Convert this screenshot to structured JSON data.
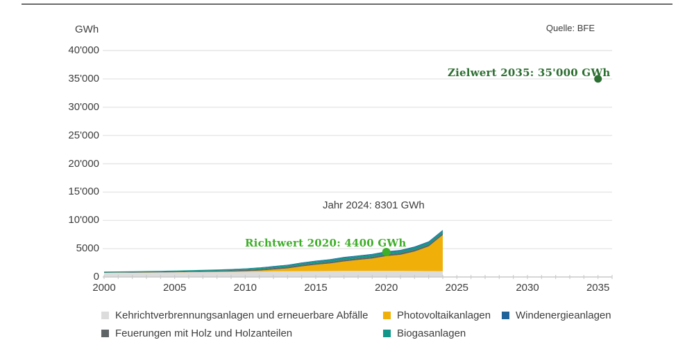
{
  "header": {
    "unit_label": "GWh",
    "source_label": "Quelle: BFE"
  },
  "annotations": {
    "jahr": {
      "text": "Jahr 2024: 8301 GWh"
    },
    "richtwert": {
      "text": "Richtwert 2020: 4400 GWh",
      "year": 2020,
      "value": 4400,
      "color": "#3fae2a"
    },
    "zielwert": {
      "text": "Zielwert 2035: 35'000 GWh",
      "year": 2035,
      "value": 35000,
      "color": "#2d6e32"
    }
  },
  "chart_data": {
    "type": "area",
    "stacked": true,
    "title": "",
    "ylabel": "GWh",
    "xlabel": "",
    "xlim": [
      2000,
      2036
    ],
    "ylim": [
      0,
      40000
    ],
    "grid": true,
    "x": [
      2000,
      2001,
      2002,
      2003,
      2004,
      2005,
      2006,
      2007,
      2008,
      2009,
      2010,
      2011,
      2012,
      2013,
      2014,
      2015,
      2016,
      2017,
      2018,
      2019,
      2020,
      2021,
      2022,
      2023,
      2024
    ],
    "series": [
      {
        "name": "Kehrichtverbrennungsanlagen und erneuerbare Abfälle",
        "color": "#dcdcdc",
        "values": [
          720,
          740,
          760,
          775,
          790,
          810,
          840,
          870,
          890,
          910,
          935,
          955,
          1000,
          1020,
          1030,
          1040,
          1050,
          1060,
          1060,
          1070,
          1080,
          1070,
          1050,
          1040,
          1031
        ]
      },
      {
        "name": "Photovoltaikanlagen",
        "color": "#f0b009",
        "values": [
          11,
          14,
          16,
          18,
          20,
          21,
          24,
          29,
          37,
          54,
          94,
          168,
          323,
          500,
          842,
          1119,
          1333,
          1683,
          1945,
          2178,
          2599,
          2842,
          3440,
          4350,
          6380
        ]
      },
      {
        "name": "Feuerungen mit Holz und Holzanteilen",
        "color": "#5f6466",
        "values": [
          60,
          70,
          80,
          90,
          100,
          110,
          130,
          150,
          170,
          195,
          220,
          235,
          250,
          265,
          280,
          290,
          300,
          305,
          310,
          315,
          320,
          330,
          335,
          340,
          350
        ]
      },
      {
        "name": "Biogasanlagen",
        "color": "#13968a",
        "values": [
          150,
          155,
          160,
          165,
          170,
          180,
          190,
          200,
          210,
          220,
          230,
          245,
          260,
          280,
          300,
          320,
          335,
          350,
          360,
          370,
          380,
          385,
          390,
          395,
          400
        ]
      },
      {
        "name": "Windenergieanlagen",
        "color": "#20639b",
        "values": [
          3,
          5,
          5,
          5,
          6,
          8,
          15,
          16,
          19,
          23,
          37,
          70,
          85,
          90,
          100,
          110,
          109,
          133,
          122,
          146,
          146,
          147,
          150,
          160,
          140
        ]
      }
    ],
    "total_2024": 8301,
    "y_ticks": [
      {
        "label": "40'000",
        "value": 40000
      },
      {
        "label": "35'000",
        "value": 35000
      },
      {
        "label": "30'000",
        "value": 30000
      },
      {
        "label": "25'000",
        "value": 25000
      },
      {
        "label": "20'000",
        "value": 20000
      },
      {
        "label": "15'000",
        "value": 15000
      },
      {
        "label": "10'000",
        "value": 10000
      },
      {
        "label": "5000",
        "value": 5000
      },
      {
        "label": "0",
        "value": 0
      }
    ],
    "x_ticks": [
      {
        "label": "2000",
        "value": 2000
      },
      {
        "label": "2005",
        "value": 2005
      },
      {
        "label": "2010",
        "value": 2010
      },
      {
        "label": "2015",
        "value": 2015
      },
      {
        "label": "2020",
        "value": 2020
      },
      {
        "label": "2025",
        "value": 2025
      },
      {
        "label": "2030",
        "value": 2030
      },
      {
        "label": "2035",
        "value": 2035
      }
    ]
  },
  "legend": {
    "items": [
      {
        "label": "Kehrichtverbrennungsanlagen und erneuerbare Abfälle",
        "color": "#dcdcdc"
      },
      {
        "label": "Photovoltaikanlagen",
        "color": "#f0b009"
      },
      {
        "label": "Windenergieanlagen",
        "color": "#20639b"
      },
      {
        "label": "Feuerungen mit Holz und Holzanteilen",
        "color": "#5f6466"
      },
      {
        "label": "Biogasanlagen",
        "color": "#13968a"
      }
    ]
  },
  "colors": {
    "text": "#3c3c3c",
    "gridline": "#e6e6e6",
    "axis": "#c9c9c9",
    "tick": "#c6c6c6",
    "top_rule": "#6a6a6a"
  }
}
